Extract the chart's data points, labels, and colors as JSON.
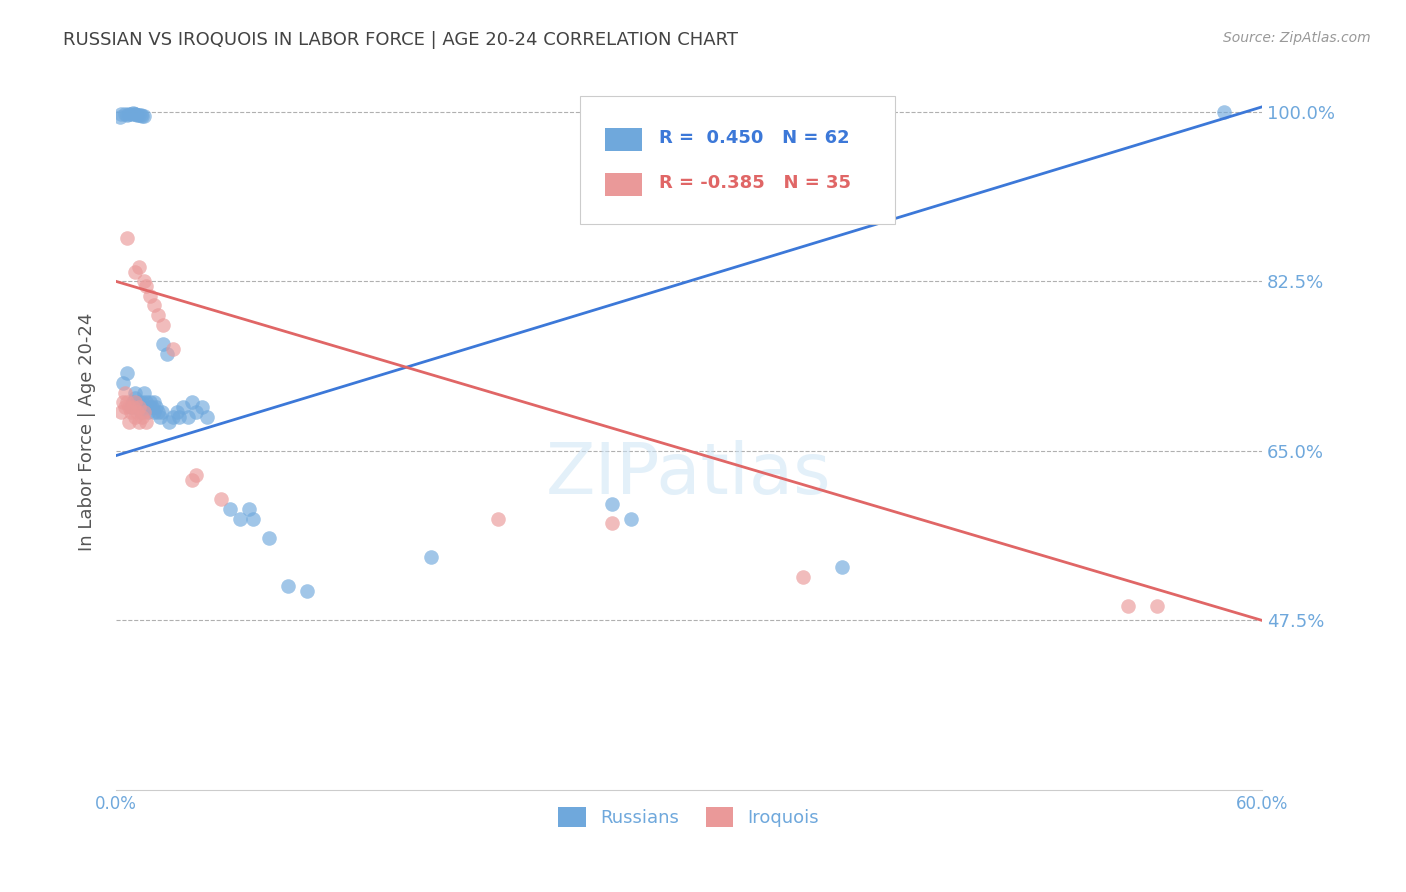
{
  "title": "RUSSIAN VS IROQUOIS IN LABOR FORCE | AGE 20-24 CORRELATION CHART",
  "source": "Source: ZipAtlas.com",
  "ylabel": "In Labor Force | Age 20-24",
  "xlim": [
    0.0,
    0.6
  ],
  "ylim": [
    0.3,
    1.04
  ],
  "yticks": [
    0.475,
    0.65,
    0.825,
    1.0
  ],
  "ytick_labels": [
    "47.5%",
    "65.0%",
    "82.5%",
    "100.0%"
  ],
  "xticks": [
    0.0,
    0.1,
    0.2,
    0.3,
    0.4,
    0.5,
    0.6
  ],
  "xtick_labels": [
    "0.0%",
    "",
    "",
    "",
    "",
    "",
    "60.0%"
  ],
  "blue_r": 0.45,
  "blue_n": 62,
  "pink_r": -0.385,
  "pink_n": 35,
  "blue_color": "#6fa8dc",
  "pink_color": "#ea9999",
  "blue_line_color": "#3c78d8",
  "pink_line_color": "#e06666",
  "watermark": "ZIPatlas",
  "background_color": "#ffffff",
  "title_color": "#434343",
  "axis_label_color": "#6fa8dc",
  "ytick_color": "#6fa8dc",
  "grid_color": "#b0b0b0",
  "legend_label_blue": "Russians",
  "legend_label_pink": "Iroquois",
  "blue_line": [
    [
      0.0,
      0.645
    ],
    [
      0.6,
      1.005
    ]
  ],
  "pink_line": [
    [
      0.0,
      0.825
    ],
    [
      0.6,
      0.475
    ]
  ],
  "blue_dots": [
    [
      0.002,
      0.995
    ],
    [
      0.003,
      0.998
    ],
    [
      0.005,
      0.998
    ],
    [
      0.006,
      0.997
    ],
    [
      0.007,
      0.998
    ],
    [
      0.008,
      0.998
    ],
    [
      0.009,
      0.999
    ],
    [
      0.01,
      0.998
    ],
    [
      0.01,
      0.998
    ],
    [
      0.011,
      0.997
    ],
    [
      0.012,
      0.997
    ],
    [
      0.013,
      0.997
    ],
    [
      0.014,
      0.996
    ],
    [
      0.015,
      0.996
    ],
    [
      0.004,
      0.72
    ],
    [
      0.006,
      0.73
    ],
    [
      0.008,
      0.695
    ],
    [
      0.009,
      0.7
    ],
    [
      0.01,
      0.71
    ],
    [
      0.01,
      0.705
    ],
    [
      0.011,
      0.695
    ],
    [
      0.012,
      0.7
    ],
    [
      0.013,
      0.69
    ],
    [
      0.013,
      0.695
    ],
    [
      0.014,
      0.7
    ],
    [
      0.015,
      0.695
    ],
    [
      0.015,
      0.71
    ],
    [
      0.016,
      0.7
    ],
    [
      0.017,
      0.69
    ],
    [
      0.018,
      0.695
    ],
    [
      0.018,
      0.7
    ],
    [
      0.019,
      0.695
    ],
    [
      0.02,
      0.7
    ],
    [
      0.02,
      0.69
    ],
    [
      0.021,
      0.695
    ],
    [
      0.022,
      0.69
    ],
    [
      0.023,
      0.685
    ],
    [
      0.024,
      0.69
    ],
    [
      0.025,
      0.76
    ],
    [
      0.027,
      0.75
    ],
    [
      0.028,
      0.68
    ],
    [
      0.03,
      0.685
    ],
    [
      0.032,
      0.69
    ],
    [
      0.033,
      0.685
    ],
    [
      0.035,
      0.695
    ],
    [
      0.038,
      0.685
    ],
    [
      0.04,
      0.7
    ],
    [
      0.042,
      0.69
    ],
    [
      0.045,
      0.695
    ],
    [
      0.048,
      0.685
    ],
    [
      0.06,
      0.59
    ],
    [
      0.065,
      0.58
    ],
    [
      0.07,
      0.59
    ],
    [
      0.072,
      0.58
    ],
    [
      0.08,
      0.56
    ],
    [
      0.09,
      0.51
    ],
    [
      0.1,
      0.505
    ],
    [
      0.165,
      0.54
    ],
    [
      0.26,
      0.595
    ],
    [
      0.27,
      0.58
    ],
    [
      0.38,
      0.53
    ],
    [
      0.58,
      1.0
    ]
  ],
  "pink_dots": [
    [
      0.003,
      0.69
    ],
    [
      0.004,
      0.7
    ],
    [
      0.005,
      0.695
    ],
    [
      0.005,
      0.71
    ],
    [
      0.006,
      0.7
    ],
    [
      0.007,
      0.695
    ],
    [
      0.007,
      0.68
    ],
    [
      0.008,
      0.69
    ],
    [
      0.009,
      0.695
    ],
    [
      0.01,
      0.7
    ],
    [
      0.01,
      0.685
    ],
    [
      0.011,
      0.69
    ],
    [
      0.012,
      0.68
    ],
    [
      0.012,
      0.695
    ],
    [
      0.014,
      0.685
    ],
    [
      0.015,
      0.69
    ],
    [
      0.016,
      0.68
    ],
    [
      0.006,
      0.87
    ],
    [
      0.01,
      0.835
    ],
    [
      0.012,
      0.84
    ],
    [
      0.015,
      0.825
    ],
    [
      0.016,
      0.82
    ],
    [
      0.018,
      0.81
    ],
    [
      0.02,
      0.8
    ],
    [
      0.022,
      0.79
    ],
    [
      0.025,
      0.78
    ],
    [
      0.03,
      0.755
    ],
    [
      0.04,
      0.62
    ],
    [
      0.042,
      0.625
    ],
    [
      0.055,
      0.6
    ],
    [
      0.2,
      0.58
    ],
    [
      0.26,
      0.575
    ],
    [
      0.36,
      0.52
    ],
    [
      0.53,
      0.49
    ],
    [
      0.545,
      0.49
    ]
  ]
}
